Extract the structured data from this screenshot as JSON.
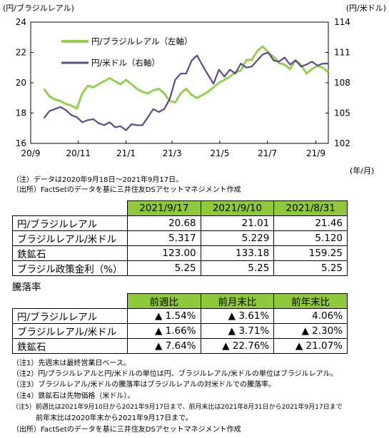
{
  "chart_data": {
    "type": "line",
    "y_left_unit": "(円/ブラジルレアル)",
    "y_right_unit": "(円/米ドル)",
    "x_unit": "(年/月)",
    "x_tick_labels": [
      "20/9",
      "20/11",
      "21/1",
      "21/3",
      "21/5",
      "21/7",
      "21/9"
    ],
    "y_left_ticks": [
      "24",
      "22",
      "20",
      "18",
      "16"
    ],
    "y_right_ticks": [
      "114",
      "111",
      "108",
      "105",
      "102"
    ],
    "ylim_left": [
      16,
      24
    ],
    "ylim_right": [
      102,
      114
    ],
    "grid": false,
    "legend_position": "top-left",
    "series": [
      {
        "name": "円/ブラジルレアル（左軸）",
        "axis": "left",
        "color": "#92d050",
        "x": [
          "2020-09-18",
          "2020-09-25",
          "2020-10-02",
          "2020-10-09",
          "2020-10-16",
          "2020-10-23",
          "2020-10-30",
          "2020-11-06",
          "2020-11-13",
          "2020-11-20",
          "2020-11-27",
          "2020-12-04",
          "2020-12-11",
          "2020-12-18",
          "2020-12-25",
          "2021-01-01",
          "2021-01-08",
          "2021-01-15",
          "2021-01-22",
          "2021-01-29",
          "2021-02-05",
          "2021-02-12",
          "2021-02-19",
          "2021-02-26",
          "2021-03-05",
          "2021-03-12",
          "2021-03-19",
          "2021-03-26",
          "2021-04-02",
          "2021-04-09",
          "2021-04-16",
          "2021-04-23",
          "2021-04-30",
          "2021-05-07",
          "2021-05-14",
          "2021-05-21",
          "2021-05-28",
          "2021-06-04",
          "2021-06-11",
          "2021-06-18",
          "2021-06-25",
          "2021-07-02",
          "2021-07-09",
          "2021-07-16",
          "2021-07-23",
          "2021-07-30",
          "2021-08-06",
          "2021-08-13",
          "2021-08-20",
          "2021-08-27",
          "2021-09-03",
          "2021-09-10",
          "2021-09-17"
        ],
        "values": [
          19.6,
          19.1,
          18.9,
          18.8,
          18.6,
          18.5,
          18.3,
          19.3,
          19.8,
          19.7,
          19.9,
          20.1,
          20.3,
          20.1,
          19.9,
          20.2,
          19.9,
          19.6,
          19.4,
          19.3,
          19.5,
          19.6,
          19.3,
          18.8,
          18.7,
          19.3,
          19.6,
          19.2,
          19.0,
          19.2,
          19.4,
          19.7,
          20.0,
          20.2,
          20.4,
          20.7,
          20.8,
          21.5,
          21.5,
          22.1,
          22.4,
          22.0,
          21.7,
          21.3,
          21.2,
          20.9,
          21.5,
          21.2,
          20.6,
          20.9,
          21.1,
          21.0,
          20.7
        ]
      },
      {
        "name": "円/米ドル（右軸）",
        "axis": "right",
        "color": "#5b4a8b",
        "x": [
          "2020-09-18",
          "2020-09-25",
          "2020-10-02",
          "2020-10-09",
          "2020-10-16",
          "2020-10-23",
          "2020-10-30",
          "2020-11-06",
          "2020-11-13",
          "2020-11-20",
          "2020-11-27",
          "2020-12-04",
          "2020-12-11",
          "2020-12-18",
          "2020-12-25",
          "2021-01-01",
          "2021-01-08",
          "2021-01-15",
          "2021-01-22",
          "2021-01-29",
          "2021-02-05",
          "2021-02-12",
          "2021-02-19",
          "2021-02-26",
          "2021-03-05",
          "2021-03-12",
          "2021-03-19",
          "2021-03-26",
          "2021-04-02",
          "2021-04-09",
          "2021-04-16",
          "2021-04-23",
          "2021-04-30",
          "2021-05-07",
          "2021-05-14",
          "2021-05-21",
          "2021-05-28",
          "2021-06-04",
          "2021-06-11",
          "2021-06-18",
          "2021-06-25",
          "2021-07-02",
          "2021-07-09",
          "2021-07-16",
          "2021-07-23",
          "2021-07-30",
          "2021-08-06",
          "2021-08-13",
          "2021-08-20",
          "2021-08-27",
          "2021-09-03",
          "2021-09-10",
          "2021-09-17"
        ],
        "values": [
          104.5,
          105.2,
          105.4,
          105.6,
          105.3,
          104.8,
          104.6,
          104.1,
          104.3,
          104.4,
          104.0,
          103.8,
          104.1,
          103.6,
          103.7,
          103.3,
          103.9,
          103.8,
          103.8,
          104.6,
          105.4,
          105.1,
          105.4,
          106.4,
          108.3,
          108.9,
          108.9,
          110.2,
          110.7,
          109.7,
          108.8,
          107.9,
          109.3,
          108.6,
          109.3,
          108.9,
          109.9,
          109.5,
          109.6,
          110.2,
          110.8,
          111.0,
          110.2,
          110.1,
          110.5,
          109.8,
          110.2,
          109.6,
          109.8,
          110.1,
          109.7,
          109.9,
          109.9
        ]
      }
    ]
  },
  "chart_notes": [
    "（注）データは2020年9月18日～2021年9月17日。",
    "（出所）FactSetのデータを基に三井住友DSアセットマネジメント作成"
  ],
  "levels_table": {
    "headers": [
      "",
      "2021/9/17",
      "2021/9/10",
      "2021/8/31"
    ],
    "rows": [
      {
        "label": "円/ブラジルレアル",
        "values": [
          "20.68",
          "21.01",
          "21.46"
        ]
      },
      {
        "label": "ブラジルレアル/米ドル",
        "values": [
          "5.317",
          "5.229",
          "5.120"
        ]
      },
      {
        "label": "鉄鉱石",
        "values": [
          "123.00",
          "133.18",
          "159.25"
        ]
      },
      {
        "label": "ブラジル政策金利（%）",
        "values": [
          "5.25",
          "5.25",
          "5.25"
        ]
      }
    ]
  },
  "change_table": {
    "title": "騰落率",
    "headers": [
      "",
      "前週比",
      "前月末比",
      "前年末比"
    ],
    "rows": [
      {
        "label": "円/ブラジルレアル",
        "values": [
          "▲ 1.54%",
          "▲ 3.61%",
          "4.06%"
        ]
      },
      {
        "label": "ブラジルレアル/米ドル",
        "values": [
          "▲ 1.66%",
          "▲ 3.71%",
          "▲ 2.30%"
        ]
      },
      {
        "label": "鉄鉱石",
        "values": [
          "▲ 7.64%",
          "▲ 22.76%",
          "▲ 21.07%"
        ]
      }
    ]
  },
  "footnotes": [
    "（注1）先週末は最終営業日ベース。",
    "（注2）円/ブラジルレアルと円/米ドルの単位は円、ブラジルレアル/米ドルの単位はブラジルレアル。",
    "（注3）ブラジルレアル/米ドルの騰落率はブラジルレアルの対米ドルでの騰落率。",
    "（注4）鉄鉱石は先物価格（米ドル）。",
    "（注5）前週比は2021年9月10日から2021年9月17日まで、前月末比は2021年8月31日から2021年9月17日まで",
    "　　　 前年末比は2020年末から2021年9月17日まで。",
    "（出所）FactSetのデータを基に三井住友DSアセットマネジメント作成"
  ]
}
